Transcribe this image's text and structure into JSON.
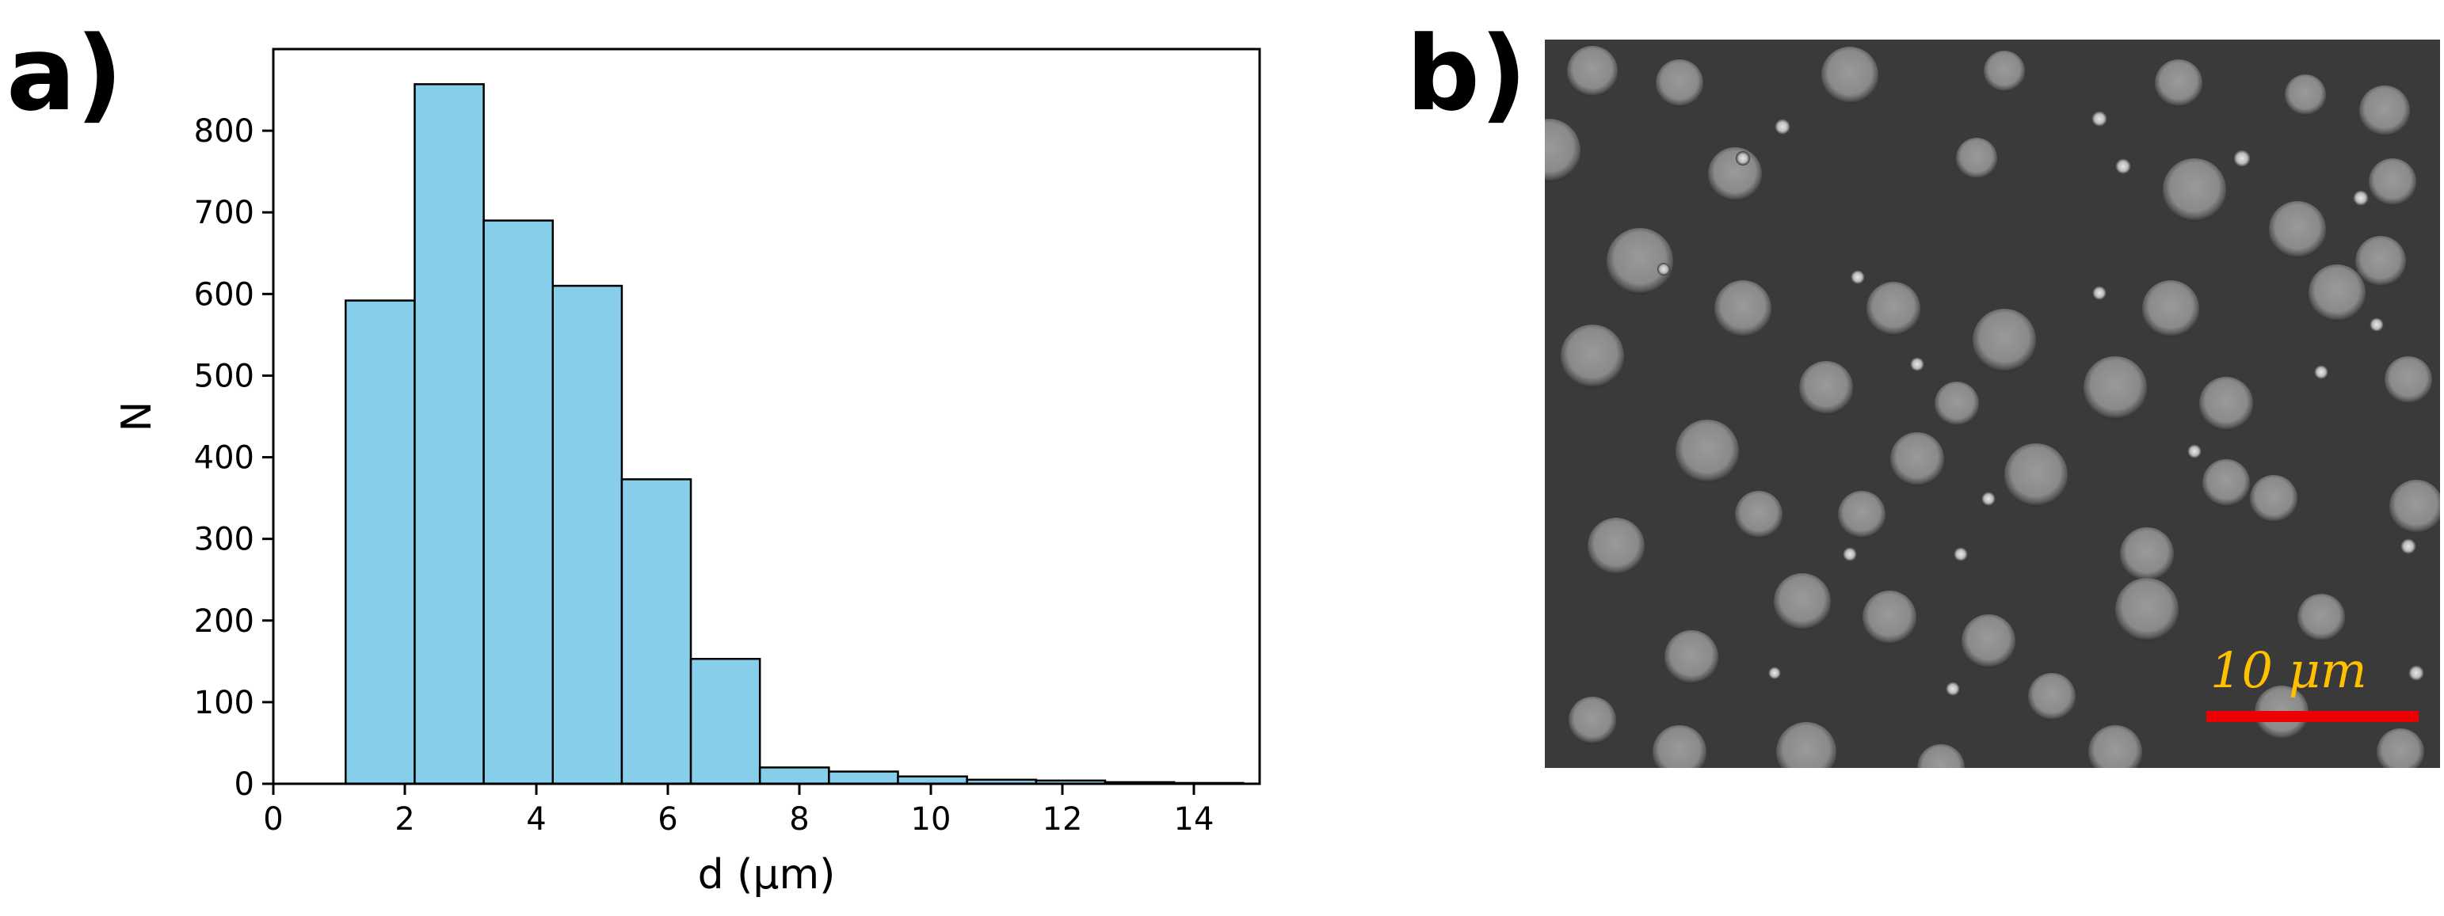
{
  "panels": {
    "a_label": "a)",
    "b_label": "b)"
  },
  "chart_data": {
    "type": "bar",
    "subtype": "histogram",
    "bin_edges": [
      1.1,
      2.15,
      3.2,
      4.25,
      5.3,
      6.35,
      7.4,
      8.45,
      9.5,
      10.55,
      11.6,
      12.65,
      13.7,
      14.75
    ],
    "values": [
      592,
      857,
      690,
      610,
      373,
      153,
      20,
      15,
      9,
      5,
      4,
      2,
      1
    ],
    "xlabel": "d (µm)",
    "ylabel": "N",
    "xlim": [
      0,
      15
    ],
    "ylim": [
      0,
      900
    ],
    "xticks": [
      "0",
      "2",
      "4",
      "6",
      "8",
      "10",
      "12",
      "14"
    ],
    "yticks": [
      "0",
      "100",
      "200",
      "300",
      "400",
      "500",
      "600",
      "700",
      "800"
    ],
    "bar_color": "#87CEEB",
    "edge_color": "#000000",
    "grid": false,
    "legend": "none"
  },
  "micrograph": {
    "background_color": "#3a3a3a",
    "particle_color": "#8a8a8a",
    "scale_bar_label": "10 μm",
    "scale_bar_color": "#ee0000",
    "scale_label_color": "#ffc000"
  }
}
